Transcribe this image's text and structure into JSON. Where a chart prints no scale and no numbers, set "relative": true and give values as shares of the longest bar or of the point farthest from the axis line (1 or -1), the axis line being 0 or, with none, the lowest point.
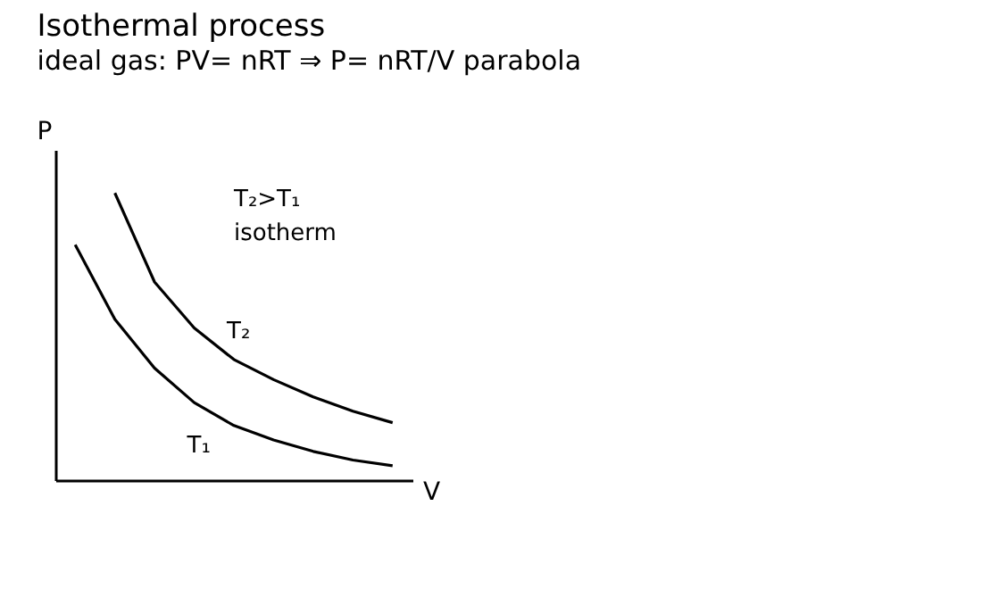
{
  "chart_data": {
    "type": "line",
    "title": "Isothermal process",
    "subtitle": "ideal gas: PV= nRT ⇒ P= nRT/V parabola",
    "xlabel": "V",
    "ylabel": "P",
    "relative": true,
    "annotations": [
      "T₂>T₁",
      "isotherm"
    ],
    "categories": [
      null,
      null,
      null,
      null,
      null,
      null,
      null,
      null,
      null
    ],
    "series": [
      {
        "name": "T₂",
        "color": "#000000",
        "values": [
          null,
          1,
          0.69,
          0.53,
          0.42,
          0.35,
          0.29,
          0.24,
          0.2
        ]
      },
      {
        "name": "T₁",
        "color": "#000000",
        "values": [
          0.82,
          0.56,
          0.39,
          0.27,
          0.19,
          0.14,
          0.1,
          0.07,
          0.05
        ]
      }
    ]
  }
}
